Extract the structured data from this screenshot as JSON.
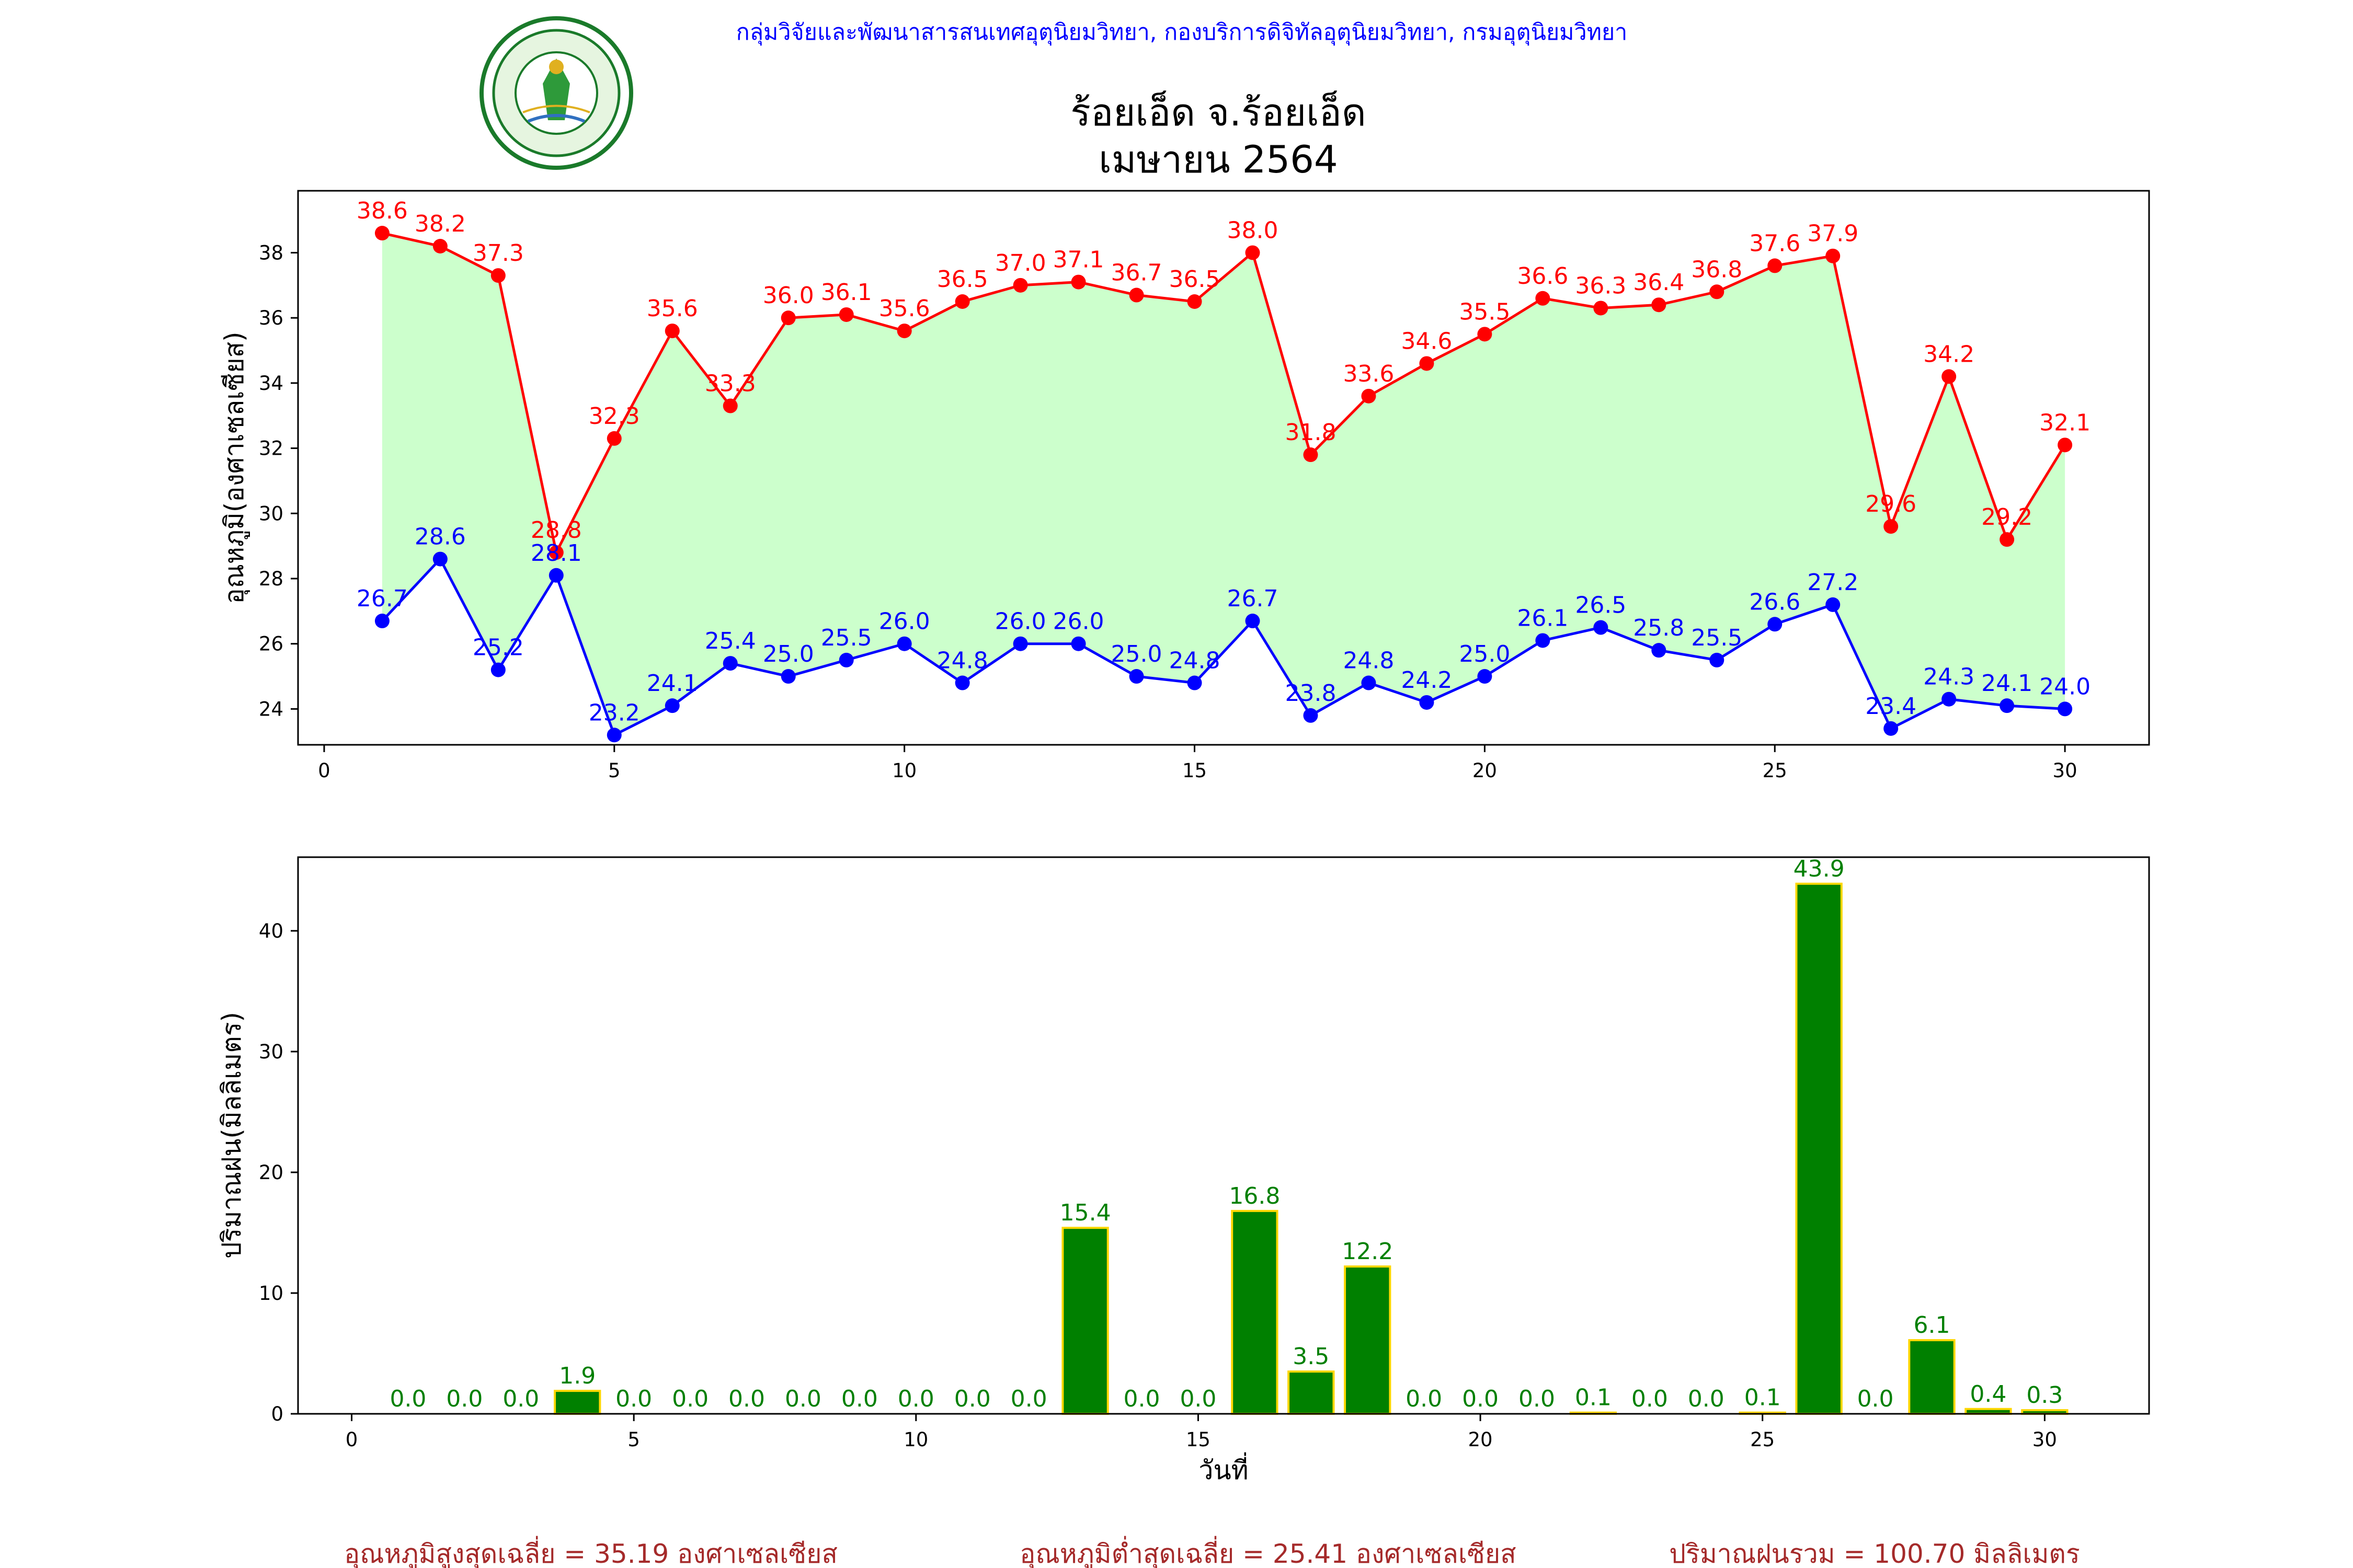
{
  "header": {
    "org_line": "กลุ่มวิจัยและพัฒนาสารสนเทศอุตุนิยมวิทยา, กองบริการดิจิทัลอุตุนิยมวิทยา, กรมอุตุนิยมวิทยา",
    "logo_text_top": "กรมอุตุนิยมวิทยา",
    "logo_text_bottom": "METEOROLOGICAL DEPARTMENT"
  },
  "title": {
    "line1": "ร้อยเอ็ด จ.ร้อยเอ็ด",
    "line2": "เมษายน 2564"
  },
  "footer": {
    "avg_max": "อุณหภูมิสูงสุดเฉลี่ย = 35.19 องศาเซลเซียส",
    "avg_min": "อุณหภูมิต่ำสุดเฉลี่ย = 25.41 องศาเซลเซียส",
    "total_rain": "ปริมาณฝนรวม = 100.70 มิลลิเมตร"
  },
  "colors": {
    "max_line": "#ff0000",
    "min_line": "#0000ff",
    "fill": "#ccffcc",
    "bar_fill": "#008000",
    "bar_edge": "#ffd700",
    "rain_label": "#008000",
    "footer": "#a52a2a"
  },
  "chart_data": [
    {
      "type": "line",
      "name": "temperature",
      "ylabel": "อุณหภูมิ(องศาเซลเซียส)",
      "xlabel": "",
      "xlim": [
        -0.45,
        31.45
      ],
      "ylim": [
        22.9,
        39.9
      ],
      "x_ticks": [
        0,
        5,
        10,
        15,
        20,
        25,
        30
      ],
      "y_ticks": [
        24,
        26,
        28,
        30,
        32,
        34,
        36,
        38
      ],
      "x": [
        1,
        2,
        3,
        4,
        5,
        6,
        7,
        8,
        9,
        10,
        11,
        12,
        13,
        14,
        15,
        16,
        17,
        18,
        19,
        20,
        21,
        22,
        23,
        24,
        25,
        26,
        27,
        28,
        29,
        30
      ],
      "series": [
        {
          "name": "max",
          "color": "#ff0000",
          "values": [
            38.6,
            38.2,
            37.3,
            28.8,
            32.3,
            35.6,
            33.3,
            36.0,
            36.1,
            35.6,
            36.5,
            37.0,
            37.1,
            36.7,
            36.5,
            38.0,
            31.8,
            33.6,
            34.6,
            35.5,
            36.6,
            36.3,
            36.4,
            36.8,
            37.6,
            37.9,
            29.6,
            34.2,
            29.2,
            32.1
          ]
        },
        {
          "name": "min",
          "color": "#0000ff",
          "values": [
            26.7,
            28.6,
            25.2,
            28.1,
            23.2,
            24.1,
            25.4,
            25.0,
            25.5,
            26.0,
            24.8,
            26.0,
            26.0,
            25.0,
            24.8,
            26.7,
            23.8,
            24.8,
            24.2,
            25.0,
            26.1,
            26.5,
            25.8,
            25.5,
            26.6,
            27.2,
            23.4,
            24.3,
            24.1,
            24.0
          ]
        }
      ],
      "fill_between": true,
      "grid": false,
      "legend": false
    },
    {
      "type": "bar",
      "name": "rainfall",
      "ylabel": "ปริมาณฝน(มิลลิเมตร)",
      "xlabel": "วันที่",
      "xlim": [
        -0.95,
        31.85
      ],
      "ylim": [
        0,
        46.1
      ],
      "x_ticks": [
        0,
        5,
        10,
        15,
        20,
        25,
        30
      ],
      "y_ticks": [
        0,
        10,
        20,
        30,
        40
      ],
      "categories": [
        1,
        2,
        3,
        4,
        5,
        6,
        7,
        8,
        9,
        10,
        11,
        12,
        13,
        14,
        15,
        16,
        17,
        18,
        19,
        20,
        21,
        22,
        23,
        24,
        25,
        26,
        27,
        28,
        29,
        30
      ],
      "values": [
        0.0,
        0.0,
        0.0,
        1.9,
        0.0,
        0.0,
        0.0,
        0.0,
        0.0,
        0.0,
        0.0,
        0.0,
        15.4,
        0.0,
        0.0,
        16.8,
        3.5,
        12.2,
        0.0,
        0.0,
        0.0,
        0.1,
        0.0,
        0.0,
        0.1,
        43.9,
        0.0,
        6.1,
        0.4,
        0.3
      ],
      "grid": false,
      "legend": false
    }
  ]
}
